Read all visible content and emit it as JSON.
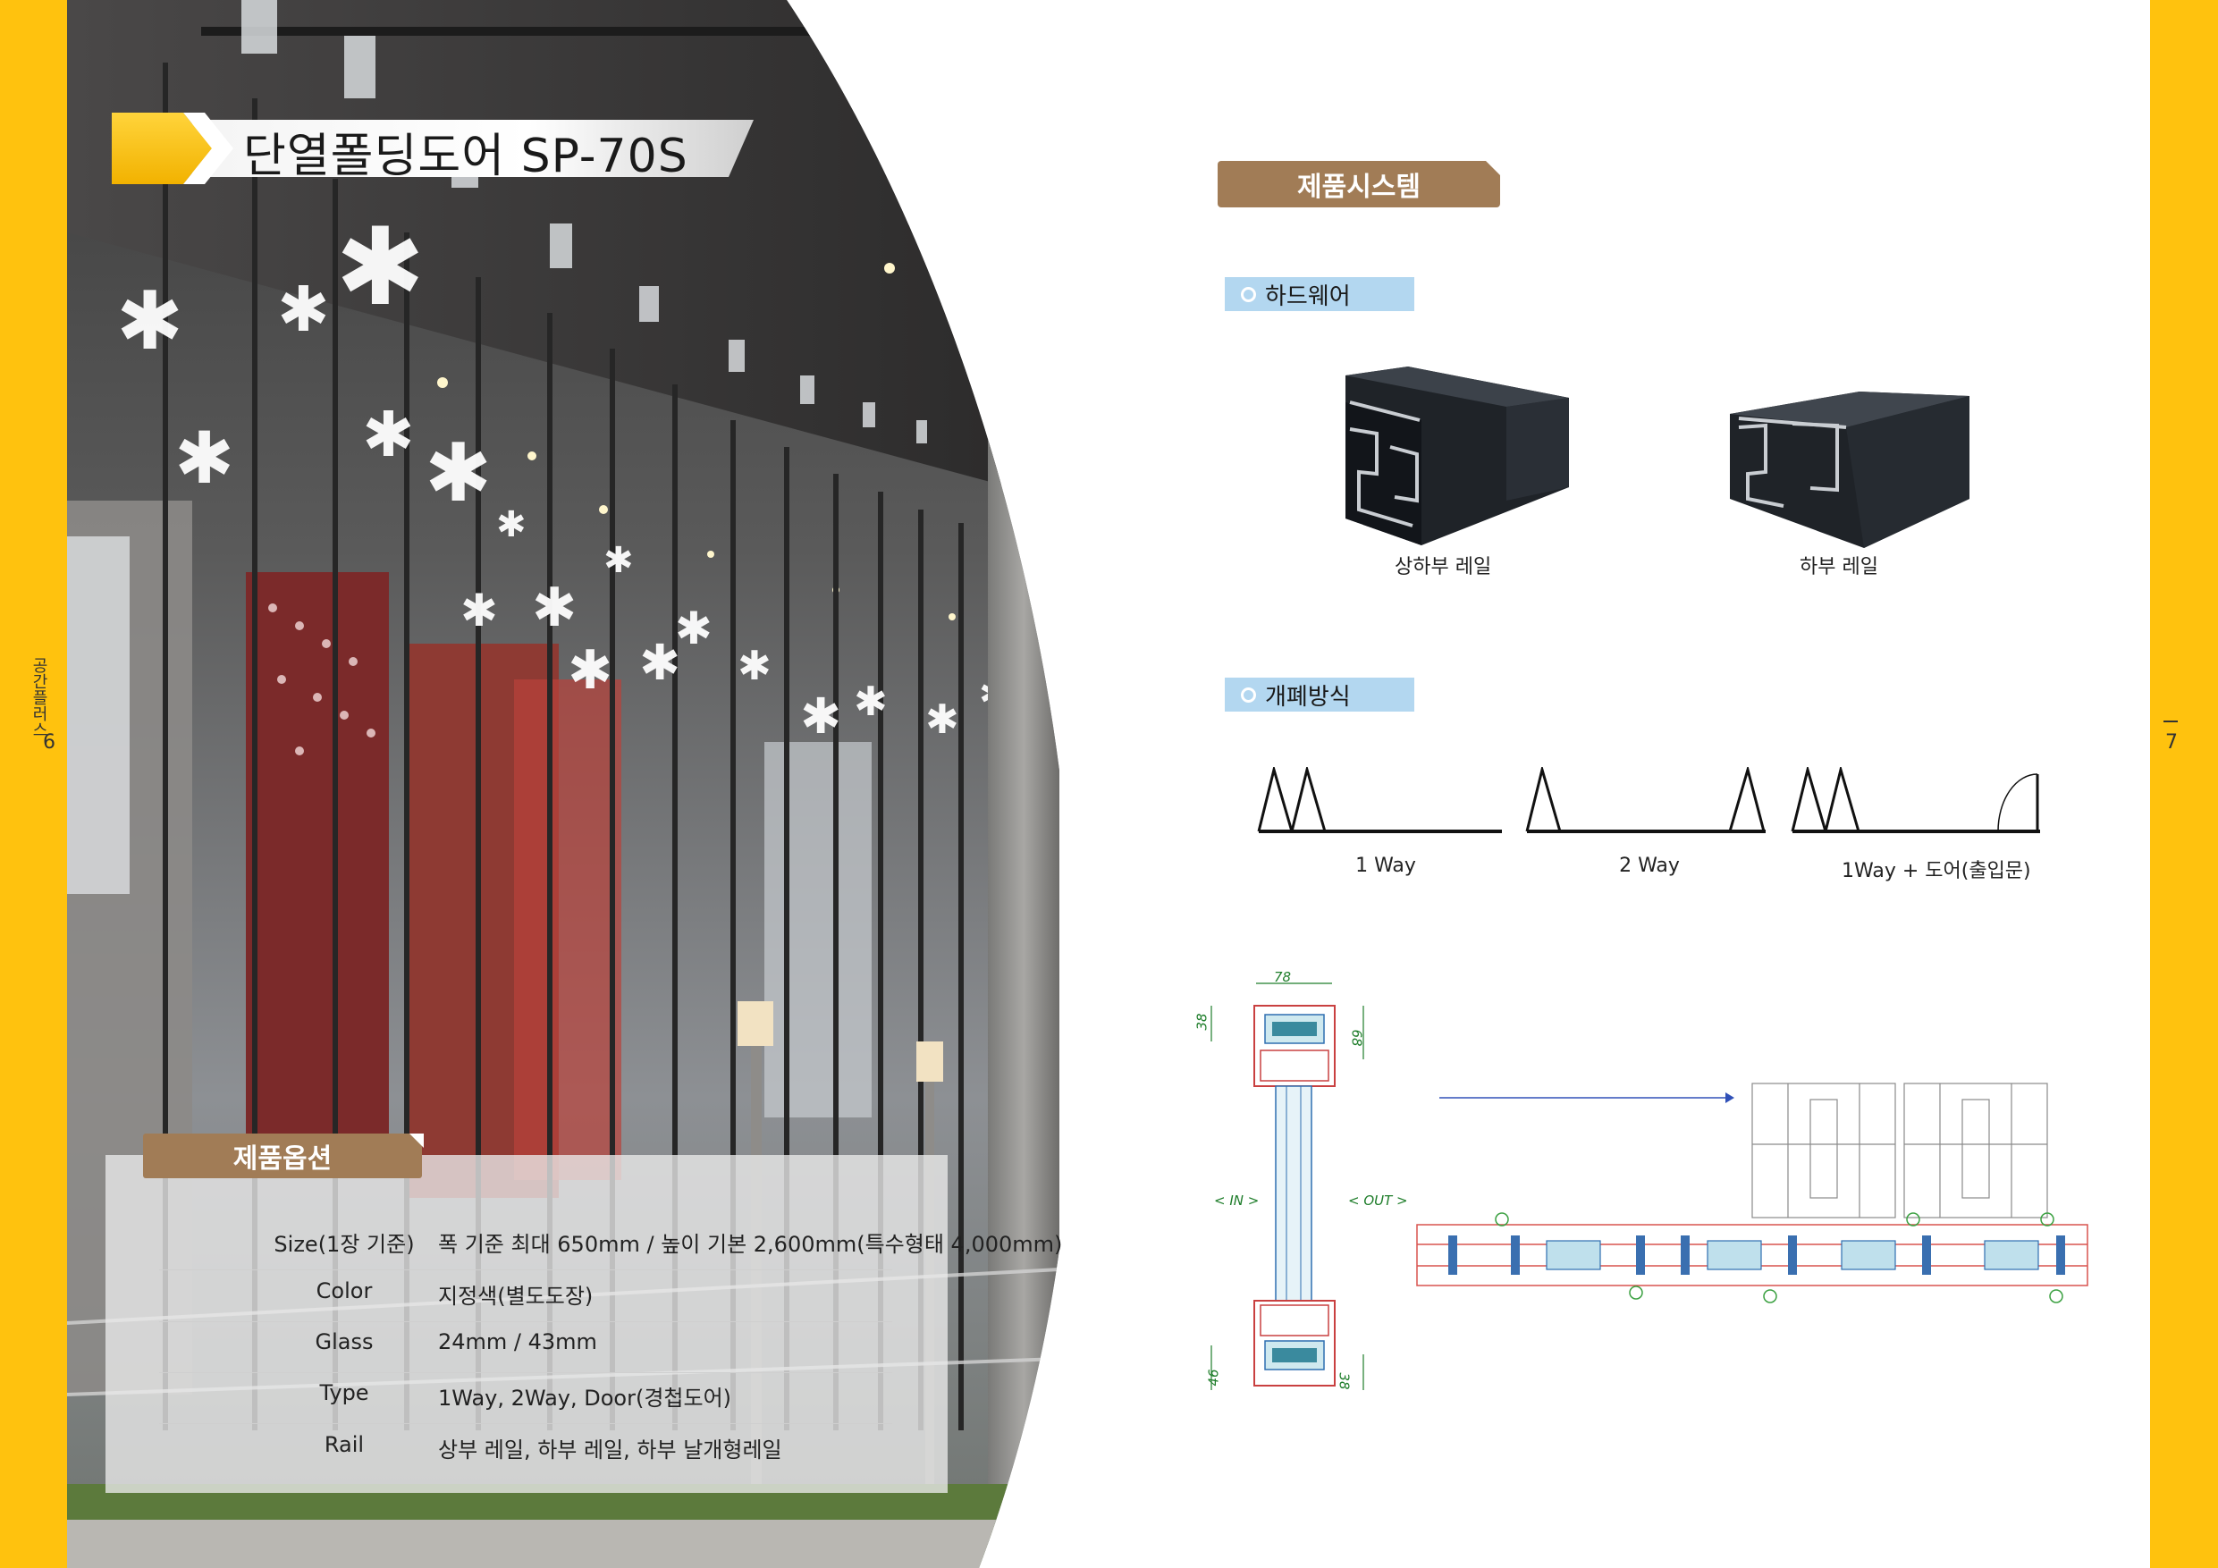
{
  "page": {
    "left_number": "6",
    "right_number": "7",
    "left_side_text": "공간플러스"
  },
  "title": "단열폴딩도어 SP-70S",
  "options": {
    "heading": "제품옵션",
    "rows": [
      {
        "label": "Size(1장 기준)",
        "value": "폭 기준 최대 650mm / 높이 기본 2,600mm(특수형태 4,000mm)"
      },
      {
        "label": "Color",
        "value": "지정색(별도도장)"
      },
      {
        "label": "Glass",
        "value": "24mm / 43mm"
      },
      {
        "label": "Type",
        "value": "1Way, 2Way, Door(경첩도어)"
      },
      {
        "label": "Rail",
        "value": "상부 레일, 하부 레일, 하부 날개형레일"
      }
    ]
  },
  "system": {
    "heading": "제품시스템",
    "hardware": {
      "heading": "하드웨어",
      "items": [
        {
          "caption": "상하부 레일"
        },
        {
          "caption": "하부 레일"
        }
      ]
    },
    "opening": {
      "heading": "개폐방식",
      "items": [
        {
          "caption": "1 Way"
        },
        {
          "caption": "2 Way"
        },
        {
          "caption": "1Way + 도어(출입문)"
        }
      ]
    },
    "drawing": {
      "dim_top": "78",
      "dim_left_top": "38",
      "dim_right_top": "68",
      "dim_left_bottom": "46",
      "dim_right_bottom": "38",
      "label_in": "< IN >",
      "label_out": "< OUT >"
    }
  },
  "colors": {
    "accent_yellow": "#ffc20e",
    "tab_brown": "#a17c56",
    "sub_tab_blue": "#b3d7f0"
  }
}
